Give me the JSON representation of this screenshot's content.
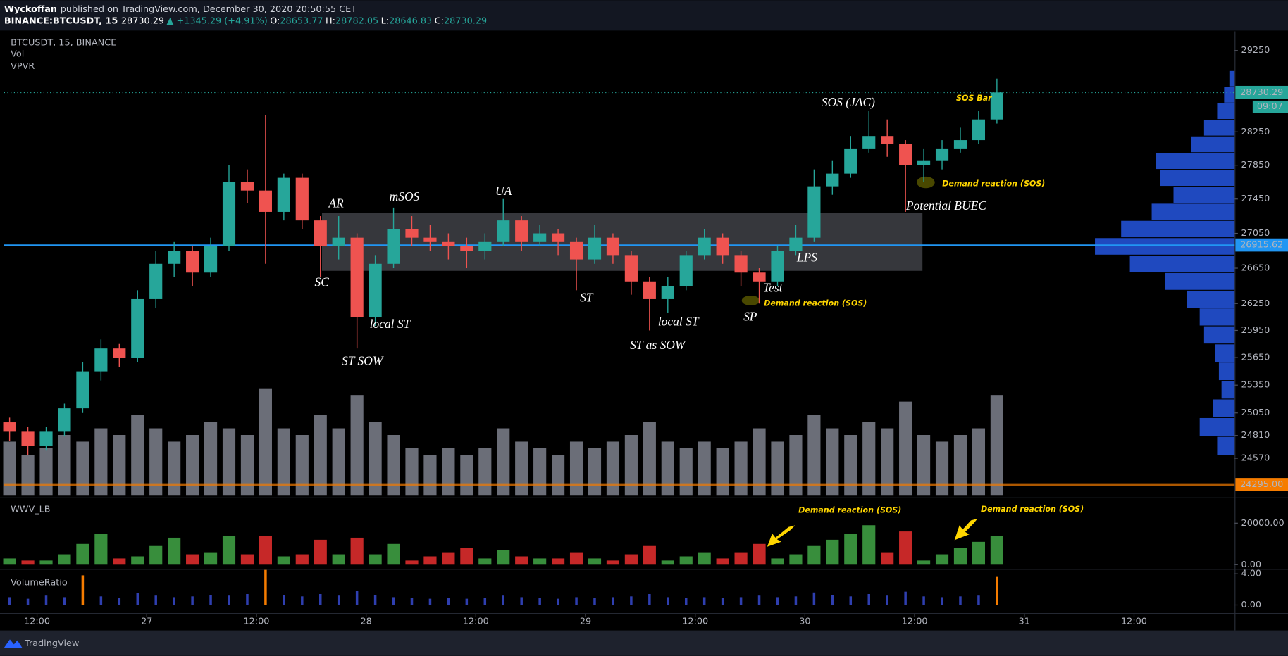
{
  "header": {
    "author": "Wyckoffan",
    "published": "published on TradingView.com, December 30, 2020 20:50:55 CET",
    "symbol": "BINANCE:BTCUSDT, 15",
    "last": "28730.29",
    "change": "▲ +1345.29 (+4.91%)",
    "ohlc": [
      {
        "label": "O:",
        "value": "28653.77"
      },
      {
        "label": "H:",
        "value": "28782.05"
      },
      {
        "label": "L:",
        "value": "28646.83"
      },
      {
        "label": "C:",
        "value": "28730.29"
      }
    ]
  },
  "legend": [
    "BTCUSDT, 15, BINANCE",
    "Vol",
    "VPVR"
  ],
  "footer": "TradingView",
  "chart_data": {
    "type": "candlestick",
    "log": true,
    "ylim": [
      24170,
      29490
    ],
    "yticks": [
      29250,
      28250,
      27850,
      27450,
      27050,
      26650,
      26250,
      25950,
      25650,
      25350,
      25050,
      24810,
      24570
    ],
    "xlim": [
      -0.3,
      67
    ],
    "xticks": [
      {
        "value": 1.5,
        "label": "12:00"
      },
      {
        "value": 7.5,
        "label": "27"
      },
      {
        "value": 13.5,
        "label": "12:00"
      },
      {
        "value": 19.5,
        "label": "28"
      },
      {
        "value": 25.5,
        "label": "12:00"
      },
      {
        "value": 31.5,
        "label": "29"
      },
      {
        "value": 37.5,
        "label": "12:00"
      },
      {
        "value": 43.5,
        "label": "30"
      },
      {
        "value": 49.5,
        "label": "12:00"
      },
      {
        "value": 55.5,
        "label": "31"
      },
      {
        "value": 61.5,
        "label": "12:00"
      }
    ],
    "up_color": "#26a69a",
    "down_color": "#ef5350",
    "ohlc": [
      [
        24950,
        25000,
        24750,
        24850
      ],
      [
        24850,
        24900,
        24600,
        24700
      ],
      [
        24700,
        24900,
        24650,
        24850
      ],
      [
        24850,
        25150,
        24800,
        25100
      ],
      [
        25100,
        25600,
        25050,
        25500
      ],
      [
        25500,
        25850,
        25400,
        25750
      ],
      [
        25750,
        25800,
        25550,
        25650
      ],
      [
        25650,
        26400,
        25600,
        26300
      ],
      [
        26300,
        26850,
        26200,
        26700
      ],
      [
        26700,
        26950,
        26550,
        26850
      ],
      [
        26850,
        26900,
        26450,
        26600
      ],
      [
        26600,
        27000,
        26550,
        26900
      ],
      [
        26900,
        27850,
        26850,
        27650
      ],
      [
        27650,
        27800,
        27400,
        27550
      ],
      [
        27550,
        28450,
        26700,
        27300
      ],
      [
        27300,
        27750,
        27200,
        27700
      ],
      [
        27700,
        27750,
        27100,
        27200
      ],
      [
        27200,
        27250,
        26550,
        26900
      ],
      [
        26900,
        27250,
        26750,
        27000
      ],
      [
        27000,
        27050,
        25750,
        26100
      ],
      [
        26100,
        26800,
        26000,
        26700
      ],
      [
        26700,
        27350,
        26650,
        27100
      ],
      [
        27100,
        27250,
        26900,
        27000
      ],
      [
        27000,
        27150,
        26850,
        26950
      ],
      [
        26950,
        27050,
        26750,
        26900
      ],
      [
        26900,
        27000,
        26650,
        26850
      ],
      [
        26850,
        27050,
        26750,
        26950
      ],
      [
        26950,
        27450,
        26900,
        27200
      ],
      [
        27200,
        27250,
        26850,
        26950
      ],
      [
        26950,
        27150,
        26900,
        27050
      ],
      [
        27050,
        27100,
        26800,
        26950
      ],
      [
        26950,
        27000,
        26400,
        26750
      ],
      [
        26750,
        27150,
        26700,
        27000
      ],
      [
        27000,
        27050,
        26700,
        26800
      ],
      [
        26800,
        26850,
        26350,
        26500
      ],
      [
        26500,
        26550,
        25950,
        26300
      ],
      [
        26300,
        26550,
        26150,
        26450
      ],
      [
        26450,
        26850,
        26400,
        26800
      ],
      [
        26800,
        27100,
        26750,
        27000
      ],
      [
        27000,
        27050,
        26700,
        26800
      ],
      [
        26800,
        26850,
        26450,
        26600
      ],
      [
        26600,
        26650,
        26250,
        26500
      ],
      [
        26500,
        26900,
        26450,
        26850
      ],
      [
        26850,
        27150,
        26800,
        27000
      ],
      [
        27000,
        27800,
        26950,
        27600
      ],
      [
        27600,
        27900,
        27500,
        27750
      ],
      [
        27750,
        28200,
        27700,
        28050
      ],
      [
        28050,
        28500,
        28000,
        28200
      ],
      [
        28200,
        28400,
        27950,
        28100
      ],
      [
        28100,
        28150,
        27300,
        27850
      ],
      [
        27850,
        28050,
        27650,
        27900
      ],
      [
        27900,
        28150,
        27800,
        28050
      ],
      [
        28050,
        28300,
        28000,
        28150
      ],
      [
        28150,
        28500,
        28100,
        28400
      ],
      [
        28400,
        28900,
        28350,
        28730
      ]
    ],
    "price_lines": [
      {
        "value": 28730.29,
        "color": "#26a69a"
      },
      {
        "value": 26915.62,
        "color": "#2196f3"
      },
      {
        "value": {
          "value": 24295,
          "label": "24295.00"
        },
        "color": "#f57c00"
      }
    ],
    "countdown": "09:07",
    "range_box": [
      26620,
      27290
    ],
    "volume": {
      "color": "#6b6e78",
      "values": [
        8,
        6,
        7,
        9,
        8,
        10,
        9,
        12,
        10,
        8,
        9,
        11,
        10,
        9,
        16,
        10,
        9,
        12,
        10,
        15,
        11,
        9,
        7,
        6,
        7,
        6,
        7,
        10,
        8,
        7,
        6,
        8,
        7,
        8,
        9,
        11,
        8,
        7,
        8,
        7,
        8,
        10,
        8,
        9,
        12,
        10,
        9,
        11,
        10,
        14,
        9,
        8,
        9,
        10,
        15
      ]
    },
    "vpvr": {
      "color": "#2962ff",
      "prices": [
        24600,
        24800,
        25000,
        25200,
        25400,
        25600,
        25800,
        26000,
        26200,
        26400,
        26600,
        26800,
        27000,
        27200,
        27400,
        27600,
        27800,
        28000,
        28200,
        28400,
        28600,
        28800
      ],
      "values": [
        20,
        40,
        25,
        15,
        18,
        22,
        35,
        40,
        55,
        80,
        120,
        160,
        130,
        95,
        70,
        85,
        90,
        50,
        35,
        20,
        12,
        6
      ]
    },
    "annotations": [
      {
        "text": "AR",
        "color": "#ffffff"
      },
      {
        "text": "SC",
        "color": "#ffffff"
      },
      {
        "text": "mSOS",
        "color": "#ffffff"
      },
      {
        "text": "UA",
        "color": "#ffffff"
      },
      {
        "text": "local ST",
        "color": "#ffffff"
      },
      {
        "text": "ST SOW",
        "color": "#ffffff"
      },
      {
        "text": "ST",
        "color": "#ffffff"
      },
      {
        "text": "local ST",
        "color": "#ffffff"
      },
      {
        "text": "ST as SOW",
        "color": "#ffffff"
      },
      {
        "text": "SP",
        "color": "#ffffff"
      },
      {
        "text": "Test",
        "color": "#ffffff"
      },
      {
        "text": "LPS",
        "color": "#ffffff"
      },
      {
        "text": "SOS (JAC)",
        "color": "#ffffff"
      },
      {
        "text": "Potential BUEC",
        "color": "#ffffff"
      },
      {
        "text": "SOS Bar",
        "color": "#ffd600"
      },
      {
        "text": "Demand reaction (SOS)",
        "color": "#ffd600"
      },
      {
        "text": "Demand reaction (SOS)",
        "color": "#ffd600"
      },
      {
        "text": "Demand reaction (SOS)",
        "color": "#ffd600"
      },
      {
        "text": "Demand reaction (SOS)",
        "color": "#ffd600"
      }
    ],
    "wwv": {
      "title": "WWV_LB",
      "ylim": [
        -1600,
        32000
      ],
      "yticks": [
        {
          "value": 20000,
          "label": "20000.00"
        },
        {
          "value": 0,
          "label": "0.00"
        }
      ],
      "values": [
        3000,
        2000,
        2000,
        5000,
        10000,
        15000,
        3000,
        4000,
        9000,
        13000,
        5000,
        6000,
        14000,
        5000,
        14000,
        4000,
        5000,
        12000,
        5000,
        13000,
        5000,
        10000,
        2000,
        4000,
        6000,
        8000,
        3000,
        7000,
        4000,
        3000,
        3000,
        6000,
        3000,
        2000,
        5000,
        9000,
        2000,
        4000,
        6000,
        3000,
        6000,
        10000,
        3000,
        5000,
        9000,
        12000,
        15000,
        19000,
        6000,
        16000,
        2000,
        5000,
        8000,
        11000,
        14000
      ],
      "colors": [
        "#388e3c",
        "#c62828",
        "#388e3c",
        "#388e3c",
        "#388e3c",
        "#388e3c",
        "#c62828",
        "#388e3c",
        "#388e3c",
        "#388e3c",
        "#c62828",
        "#388e3c",
        "#388e3c",
        "#c62828",
        "#c62828",
        "#388e3c",
        "#c62828",
        "#c62828",
        "#388e3c",
        "#c62828",
        "#388e3c",
        "#388e3c",
        "#c62828",
        "#c62828",
        "#c62828",
        "#c62828",
        "#388e3c",
        "#388e3c",
        "#c62828",
        "#388e3c",
        "#c62828",
        "#c62828",
        "#388e3c",
        "#c62828",
        "#c62828",
        "#c62828",
        "#388e3c",
        "#388e3c",
        "#388e3c",
        "#c62828",
        "#c62828",
        "#c62828",
        "#388e3c",
        "#388e3c",
        "#388e3c",
        "#388e3c",
        "#388e3c",
        "#388e3c",
        "#c62828",
        "#c62828",
        "#388e3c",
        "#388e3c",
        "#388e3c",
        "#388e3c",
        "#388e3c"
      ]
    },
    "volume_ratio": {
      "title": "VolumeRatio",
      "ylim": [
        -1.05,
        4.53
      ],
      "yticks": [
        {
          "value": 4,
          "label": "4.00"
        },
        {
          "value": 0,
          "label": "0.00"
        }
      ],
      "values": [
        1.0,
        0.8,
        1.2,
        1.0,
        3.8,
        1.1,
        0.9,
        1.5,
        1.2,
        1.0,
        1.1,
        1.3,
        1.2,
        1.4,
        4.5,
        1.3,
        1.1,
        1.4,
        1.2,
        1.8,
        1.3,
        1.0,
        0.9,
        0.8,
        0.9,
        0.8,
        0.9,
        1.2,
        1.0,
        0.9,
        0.8,
        1.0,
        0.9,
        1.0,
        1.1,
        1.4,
        1.0,
        0.9,
        1.0,
        0.9,
        1.0,
        1.2,
        1.0,
        1.1,
        1.6,
        1.3,
        1.1,
        1.4,
        1.2,
        1.7,
        1.1,
        1.0,
        1.1,
        1.2,
        3.6
      ],
      "colors": [
        "#2f3fb0",
        "#2f3fb0",
        "#2f3fb0",
        "#2f3fb0",
        "#f57c00",
        "#2f3fb0",
        "#2f3fb0",
        "#2f3fb0",
        "#2f3fb0",
        "#2f3fb0",
        "#2f3fb0",
        "#2f3fb0",
        "#2f3fb0",
        "#2f3fb0",
        "#f57c00",
        "#2f3fb0",
        "#2f3fb0",
        "#2f3fb0",
        "#2f3fb0",
        "#2f3fb0",
        "#2f3fb0",
        "#2f3fb0",
        "#2f3fb0",
        "#2f3fb0",
        "#2f3fb0",
        "#2f3fb0",
        "#2f3fb0",
        "#2f3fb0",
        "#2f3fb0",
        "#2f3fb0",
        "#2f3fb0",
        "#2f3fb0",
        "#2f3fb0",
        "#2f3fb0",
        "#2f3fb0",
        "#2f3fb0",
        "#2f3fb0",
        "#2f3fb0",
        "#2f3fb0",
        "#2f3fb0",
        "#2f3fb0",
        "#2f3fb0",
        "#2f3fb0",
        "#2f3fb0",
        "#2f3fb0",
        "#2f3fb0",
        "#2f3fb0",
        "#2f3fb0",
        "#2f3fb0",
        "#2f3fb0",
        "#2f3fb0",
        "#2f3fb0",
        "#2f3fb0",
        "#2f3fb0",
        "#f57c00"
      ]
    }
  }
}
